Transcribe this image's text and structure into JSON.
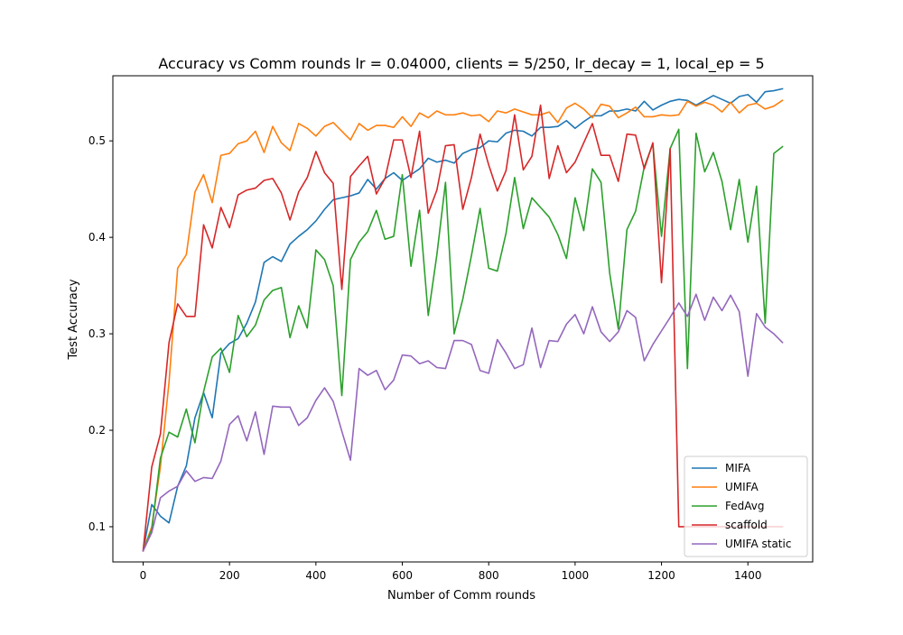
{
  "chart_data": {
    "type": "line",
    "title": "Accuracy vs Comm rounds lr = 0.04000, clients = 5/250, lr_decay = 1, local_ep = 5",
    "xlabel": "Number of Comm rounds",
    "ylabel": "Test Accuracy",
    "xlim": [
      -70,
      1550
    ],
    "ylim": [
      0.0635,
      0.5675
    ],
    "xticks": [
      0,
      200,
      400,
      600,
      800,
      1000,
      1200,
      1400
    ],
    "yticks": [
      0.1,
      0.2,
      0.3,
      0.4,
      0.5
    ],
    "grid": false,
    "legend_position": "lower-right",
    "x": [
      0,
      20,
      40,
      60,
      80,
      100,
      120,
      140,
      160,
      180,
      200,
      220,
      240,
      260,
      280,
      300,
      320,
      340,
      360,
      380,
      400,
      420,
      440,
      460,
      480,
      500,
      520,
      540,
      560,
      580,
      600,
      620,
      640,
      660,
      680,
      700,
      720,
      740,
      760,
      780,
      800,
      820,
      840,
      860,
      880,
      900,
      920,
      940,
      960,
      980,
      1000,
      1020,
      1040,
      1060,
      1080,
      1100,
      1120,
      1140,
      1160,
      1180,
      1200,
      1220,
      1240,
      1260,
      1280,
      1300,
      1320,
      1340,
      1360,
      1380,
      1400,
      1420,
      1440,
      1460,
      1480
    ],
    "series": [
      {
        "name": "MIFA",
        "color": "#1f77b4",
        "values": [
          0.075,
          0.123,
          0.111,
          0.104,
          0.142,
          0.163,
          0.213,
          0.239,
          0.213,
          0.28,
          0.29,
          0.295,
          0.311,
          0.333,
          0.374,
          0.38,
          0.375,
          0.393,
          0.401,
          0.408,
          0.417,
          0.429,
          0.439,
          0.441,
          0.443,
          0.446,
          0.46,
          0.45,
          0.461,
          0.467,
          0.459,
          0.465,
          0.471,
          0.482,
          0.478,
          0.48,
          0.477,
          0.487,
          0.491,
          0.493,
          0.5,
          0.499,
          0.508,
          0.511,
          0.51,
          0.505,
          0.514,
          0.514,
          0.515,
          0.521,
          0.513,
          0.52,
          0.526,
          0.526,
          0.531,
          0.531,
          0.533,
          0.531,
          0.541,
          0.532,
          0.537,
          0.541,
          0.543,
          0.542,
          0.537,
          0.542,
          0.547,
          0.543,
          0.539,
          0.546,
          0.548,
          0.54,
          0.551,
          0.552,
          0.554
        ]
      },
      {
        "name": "UMIFA",
        "color": "#ff7f0e",
        "values": [
          0.075,
          0.1,
          0.162,
          0.25,
          0.368,
          0.382,
          0.447,
          0.465,
          0.436,
          0.485,
          0.487,
          0.497,
          0.5,
          0.51,
          0.488,
          0.515,
          0.498,
          0.49,
          0.518,
          0.513,
          0.505,
          0.515,
          0.519,
          0.51,
          0.501,
          0.518,
          0.511,
          0.516,
          0.516,
          0.514,
          0.525,
          0.515,
          0.529,
          0.524,
          0.531,
          0.527,
          0.527,
          0.529,
          0.526,
          0.527,
          0.52,
          0.531,
          0.529,
          0.533,
          0.53,
          0.527,
          0.527,
          0.53,
          0.519,
          0.534,
          0.539,
          0.533,
          0.524,
          0.538,
          0.536,
          0.524,
          0.529,
          0.535,
          0.525,
          0.525,
          0.527,
          0.526,
          0.527,
          0.541,
          0.536,
          0.54,
          0.537,
          0.53,
          0.54,
          0.529,
          0.537,
          0.539,
          0.533,
          0.536,
          0.542
        ]
      },
      {
        "name": "FedAvg",
        "color": "#2ca02c",
        "values": [
          0.075,
          0.097,
          0.171,
          0.198,
          0.193,
          0.222,
          0.187,
          0.24,
          0.276,
          0.285,
          0.26,
          0.319,
          0.297,
          0.309,
          0.335,
          0.345,
          0.348,
          0.296,
          0.329,
          0.306,
          0.387,
          0.377,
          0.35,
          0.236,
          0.377,
          0.395,
          0.406,
          0.428,
          0.398,
          0.401,
          0.465,
          0.37,
          0.428,
          0.319,
          0.382,
          0.457,
          0.3,
          0.336,
          0.381,
          0.43,
          0.368,
          0.365,
          0.404,
          0.462,
          0.409,
          0.441,
          0.431,
          0.421,
          0.403,
          0.378,
          0.441,
          0.407,
          0.471,
          0.457,
          0.363,
          0.305,
          0.408,
          0.427,
          0.473,
          0.497,
          0.401,
          0.492,
          0.512,
          0.264,
          0.508,
          0.468,
          0.488,
          0.458,
          0.408,
          0.46,
          0.395,
          0.453,
          0.311,
          0.487,
          0.494
        ]
      },
      {
        "name": "scaffold",
        "color": "#d62728",
        "values": [
          0.075,
          0.162,
          0.196,
          0.291,
          0.331,
          0.318,
          0.318,
          0.413,
          0.389,
          0.431,
          0.41,
          0.444,
          0.449,
          0.451,
          0.459,
          0.461,
          0.446,
          0.418,
          0.447,
          0.462,
          0.489,
          0.467,
          0.456,
          0.346,
          0.463,
          0.474,
          0.484,
          0.445,
          0.461,
          0.501,
          0.501,
          0.462,
          0.51,
          0.425,
          0.449,
          0.495,
          0.496,
          0.429,
          0.462,
          0.507,
          0.475,
          0.448,
          0.469,
          0.527,
          0.47,
          0.484,
          0.537,
          0.461,
          0.495,
          0.467,
          0.478,
          0.498,
          0.518,
          0.485,
          0.485,
          0.458,
          0.507,
          0.506,
          0.471,
          0.498,
          0.353,
          0.492,
          0.1,
          0.1,
          0.1,
          0.1,
          0.1,
          0.1,
          0.1,
          0.1,
          0.1,
          0.1,
          0.1,
          0.1,
          0.1
        ]
      },
      {
        "name": "UMIFA static",
        "color": "#9467bd",
        "values": [
          0.075,
          0.094,
          0.13,
          0.137,
          0.142,
          0.158,
          0.147,
          0.151,
          0.15,
          0.168,
          0.206,
          0.215,
          0.189,
          0.219,
          0.175,
          0.225,
          0.224,
          0.224,
          0.205,
          0.213,
          0.231,
          0.244,
          0.23,
          0.199,
          0.169,
          0.264,
          0.257,
          0.262,
          0.242,
          0.252,
          0.278,
          0.277,
          0.269,
          0.272,
          0.265,
          0.264,
          0.293,
          0.293,
          0.289,
          0.262,
          0.259,
          0.294,
          0.28,
          0.264,
          0.268,
          0.306,
          0.265,
          0.293,
          0.292,
          0.31,
          0.32,
          0.3,
          0.328,
          0.302,
          0.292,
          0.302,
          0.324,
          0.317,
          0.272,
          0.289,
          0.303,
          0.317,
          0.332,
          0.318,
          0.341,
          0.314,
          0.338,
          0.324,
          0.34,
          0.323,
          0.256,
          0.321,
          0.307,
          0.3,
          0.291
        ]
      }
    ]
  }
}
